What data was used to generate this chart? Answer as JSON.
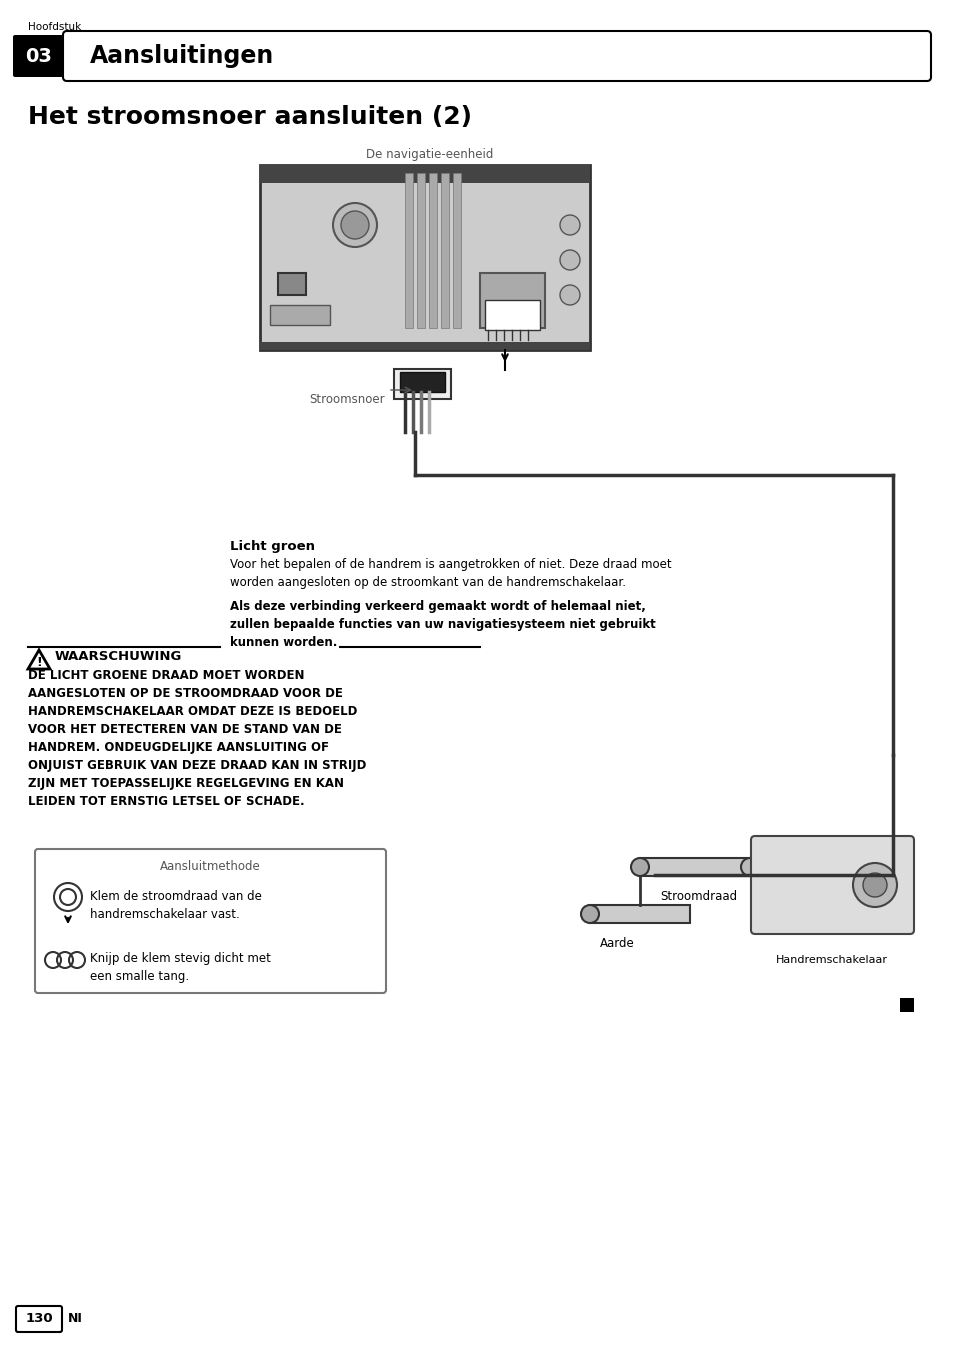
{
  "page_bg": "#ffffff",
  "header_label": "Hoofdstuk",
  "header_num": "03",
  "header_title": "Aansluitingen",
  "main_title": "Het stroomsnoer aansluiten (2)",
  "nav_label": "De navigatie-eenheid",
  "stroomsnoer_label": "Stroomsnoer",
  "stroomdraad_label": "Stroomdraad",
  "aarde_label": "Aarde",
  "handrem_label": "Handremschakelaar",
  "licht_groen_title": "Licht groen",
  "licht_groen_text": "Voor het bepalen of de handrem is aangetrokken of niet. Deze draad moet\nworden aangesloten op de stroomkant van de handremschakelaar.",
  "licht_groen_bold": "Als deze verbinding verkeerd gemaakt wordt of helemaal niet,\nzullen bepaalde functies van uw navigatiesysteem niet gebruikt\nkunnen worden.",
  "waarschuwing_title": "WAARSCHUWING",
  "waarschuwing_text": "DE LICHT GROENE DRAAD MOET WORDEN\nAANGESLOTEN OP DE STROOMDRAAD VOOR DE\nHANDREMSCHAKELAAR OMDAT DEZE IS BEDOELD\nVOOR HET DETECTEREN VAN DE STAND VAN DE\nHANDREM. ONDEUGDELIJKE AANSLUITING OF\nONJUIST GEBRUIK VAN DEZE DRAAD KAN IN STRIJD\nZIJN MET TOEPASSELIJKE REGELGEVING EN KAN\nLEIDEN TOT ERNSTIG LETSEL OF SCHADE.",
  "aansluitmethode_title": "Aansluitmethode",
  "klem_text": "Klem de stroomdraad van de\nhandremschakelaar vast.",
  "knijp_text": "Knijp de klem stevig dicht met\neen smalle tang.",
  "page_num": "130",
  "page_lang": "NI"
}
